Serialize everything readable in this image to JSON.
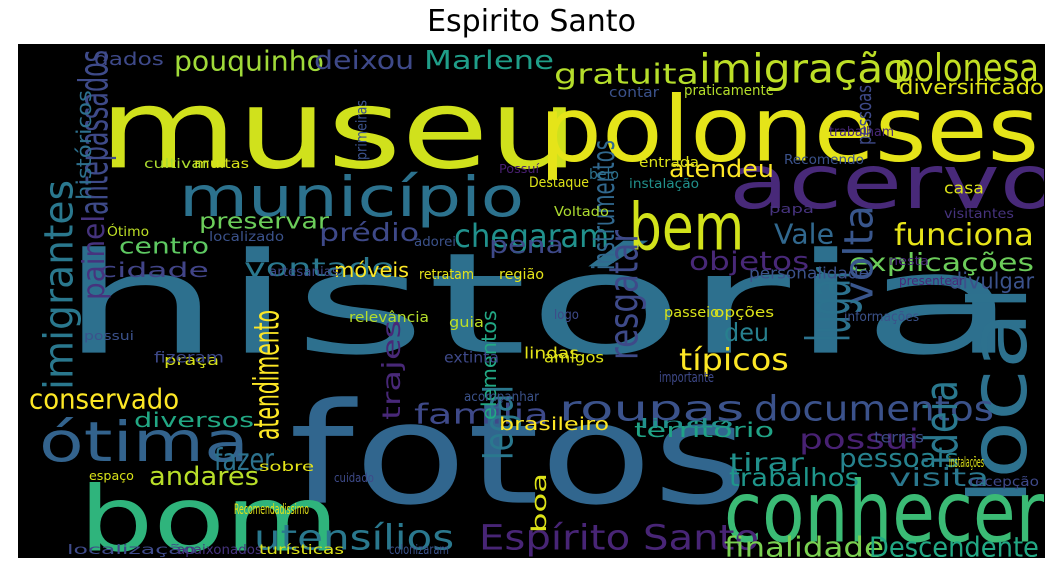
{
  "chart_data": {
    "type": "wordcloud",
    "title": "Espirito Santo",
    "background": "#000000",
    "colormap": "viridis",
    "words": [
      {
        "text": "história",
        "color": "#2d708e"
      },
      {
        "text": "museu",
        "color": "#d0e11c"
      },
      {
        "text": "fotos",
        "color": "#31668e"
      },
      {
        "text": "poloneses",
        "color": "#e5e419"
      },
      {
        "text": "acervo",
        "color": "#482979"
      },
      {
        "text": "local",
        "color": "#2d718e"
      },
      {
        "text": "bom",
        "color": "#2fb47c"
      },
      {
        "text": "conhecer",
        "color": "#3bbb75"
      },
      {
        "text": "município",
        "color": "#2c728e"
      },
      {
        "text": "bem",
        "color": "#d2e21b"
      },
      {
        "text": "ótima",
        "color": "#33638d"
      },
      {
        "text": "imigração",
        "color": "#bddf26"
      },
      {
        "text": "polonesa",
        "color": "#c2df23"
      },
      {
        "text": "roupas",
        "color": "#3b528b"
      },
      {
        "text": "documentos",
        "color": "#3b528b"
      },
      {
        "text": "utensílios",
        "color": "#2a788e"
      },
      {
        "text": "Espírito Santo",
        "color": "#482576"
      },
      {
        "text": "finalidade",
        "color": "#7ad151"
      },
      {
        "text": "Descendente",
        "color": "#22a884"
      },
      {
        "text": "funciona",
        "color": "#e7e419"
      },
      {
        "text": "chegaram",
        "color": "#21918c"
      },
      {
        "text": "imigrantes",
        "color": "#2a788e"
      },
      {
        "text": "antepassados",
        "color": "#3e4a89"
      },
      {
        "text": "gratuita",
        "color": "#b5de2b"
      },
      {
        "text": "pouquinho",
        "color": "#a0da39"
      },
      {
        "text": "deixou",
        "color": "#3e4989"
      },
      {
        "text": "Marlene",
        "color": "#1f9e89"
      },
      {
        "text": "diversificado",
        "color": "#dde318"
      },
      {
        "text": "atendeu",
        "color": "#fde725"
      },
      {
        "text": "explicações",
        "color": "#6ccd5a"
      },
      {
        "text": "típicos",
        "color": "#fde725"
      },
      {
        "text": "conservado",
        "color": "#fde725"
      },
      {
        "text": "pessoais",
        "color": "#26828e"
      },
      {
        "text": "visita",
        "color": "#2a788e"
      },
      {
        "text": "trabalhos",
        "color": "#1f968b"
      },
      {
        "text": "andares",
        "color": "#b8de29"
      },
      {
        "text": "possui",
        "color": "#482173"
      },
      {
        "text": "família",
        "color": "#3e4989"
      },
      {
        "text": "tirar",
        "color": "#21918c"
      },
      {
        "text": "prédio",
        "color": "#3e4989"
      },
      {
        "text": "pena",
        "color": "#3e4989"
      },
      {
        "text": "Vale",
        "color": "#31688e"
      },
      {
        "text": "volta",
        "color": "#39568c"
      },
      {
        "text": "objetos",
        "color": "#482878"
      },
      {
        "text": "lugar",
        "color": "#2c728e"
      },
      {
        "text": "deu",
        "color": "#27808e"
      },
      {
        "text": "resgatar",
        "color": "#3e4a89"
      },
      {
        "text": "vontade",
        "color": "#2a788e"
      },
      {
        "text": "centro",
        "color": "#5ec962"
      },
      {
        "text": "preservar",
        "color": "#6ccd5a"
      },
      {
        "text": "cidade",
        "color": "#414487"
      },
      {
        "text": "painel",
        "color": "#46337e"
      },
      {
        "text": "atendimento",
        "color": "#fde725"
      },
      {
        "text": "fazer",
        "color": "#2c728e"
      },
      {
        "text": "trajes",
        "color": "#482878"
      },
      {
        "text": "legal",
        "color": "#2a788e"
      },
      {
        "text": "divulgar",
        "color": "#3b528b"
      },
      {
        "text": "ideia",
        "color": "#2a788e"
      },
      {
        "text": "diversos",
        "color": "#22a884"
      },
      {
        "text": "instrumentos",
        "color": "#31688e"
      },
      {
        "text": "personalidade",
        "color": "#3b528b"
      },
      {
        "text": "elementos",
        "color": "#22a884"
      },
      {
        "text": "móveis",
        "color": "#fde725"
      },
      {
        "text": "território",
        "color": "#20a386"
      },
      {
        "text": "brasileiro",
        "color": "#fde725"
      },
      {
        "text": "casa",
        "color": "#dde318"
      },
      {
        "text": "lindas",
        "color": "#e5e419"
      },
      {
        "text": "praça",
        "color": "#d8e219"
      },
      {
        "text": "guia",
        "color": "#bddf26"
      },
      {
        "text": "históricos",
        "color": "#2d708e"
      },
      {
        "text": "dados",
        "color": "#3e4989"
      },
      {
        "text": "cultivar",
        "color": "#addc30"
      },
      {
        "text": "muitas",
        "color": "#d8e219"
      },
      {
        "text": "Ótimo",
        "color": "#bddf26"
      },
      {
        "text": "localizado",
        "color": "#3b528b"
      },
      {
        "text": "primeiras",
        "color": "#3b528b"
      },
      {
        "text": "contar",
        "color": "#3b528b"
      },
      {
        "text": "praticamente",
        "color": "#b5de2b"
      },
      {
        "text": "pessoas",
        "color": "#3e4a89"
      },
      {
        "text": "trabalham",
        "color": "#482878"
      },
      {
        "text": "belo",
        "color": "#2c728e"
      },
      {
        "text": "entrada",
        "color": "#dde318"
      },
      {
        "text": "Recomendo",
        "color": "#3b528b"
      },
      {
        "text": "Possuí",
        "color": "#481f70"
      },
      {
        "text": "Destaque",
        "color": "#dde318"
      },
      {
        "text": "instalação",
        "color": "#21918c"
      },
      {
        "text": "Voltado",
        "color": "#addc30"
      },
      {
        "text": "visitantes",
        "color": "#46337e"
      },
      {
        "text": "papa",
        "color": "#46337e"
      },
      {
        "text": "adorei",
        "color": "#3b528b"
      },
      {
        "text": "artesanias",
        "color": "#3e4a89"
      },
      {
        "text": "retratam",
        "color": "#e5e419"
      },
      {
        "text": "região",
        "color": "#e5e419"
      },
      {
        "text": "nesta",
        "color": "#482878"
      },
      {
        "text": "presentear",
        "color": "#482878"
      },
      {
        "text": "relevância",
        "color": "#b5de2b"
      },
      {
        "text": "logo",
        "color": "#3e4a89"
      },
      {
        "text": "passeio",
        "color": "#d8e219"
      },
      {
        "text": "opções",
        "color": "#dde318"
      },
      {
        "text": "informações",
        "color": "#3b528b"
      },
      {
        "text": "possui",
        "color": "#3b528b"
      },
      {
        "text": "fizeram",
        "color": "#3e4989"
      },
      {
        "text": "extinta",
        "color": "#3e4989"
      },
      {
        "text": "amigos",
        "color": "#dde318"
      },
      {
        "text": "importante",
        "color": "#3e4989"
      },
      {
        "text": "acompanhar",
        "color": "#3b528b"
      },
      {
        "text": "lindo",
        "color": "#21918c"
      },
      {
        "text": "terras",
        "color": "#3e4a89"
      },
      {
        "text": "espaço",
        "color": "#d8e219"
      },
      {
        "text": "sobre",
        "color": "#e5e419"
      },
      {
        "text": "cuidado",
        "color": "#3e4a89"
      },
      {
        "text": "boa",
        "color": "#dde318"
      },
      {
        "text": "instalações",
        "color": "#dde318"
      },
      {
        "text": "recepção",
        "color": "#3e4989"
      },
      {
        "text": "Recomendadissimo",
        "color": "#e5e419"
      },
      {
        "text": "localização",
        "color": "#3e4a89"
      },
      {
        "text": "apaixonados",
        "color": "#46337e"
      },
      {
        "text": "turísticas",
        "color": "#dde318"
      },
      {
        "text": "colonizaram",
        "color": "#3b528b"
      }
    ]
  }
}
